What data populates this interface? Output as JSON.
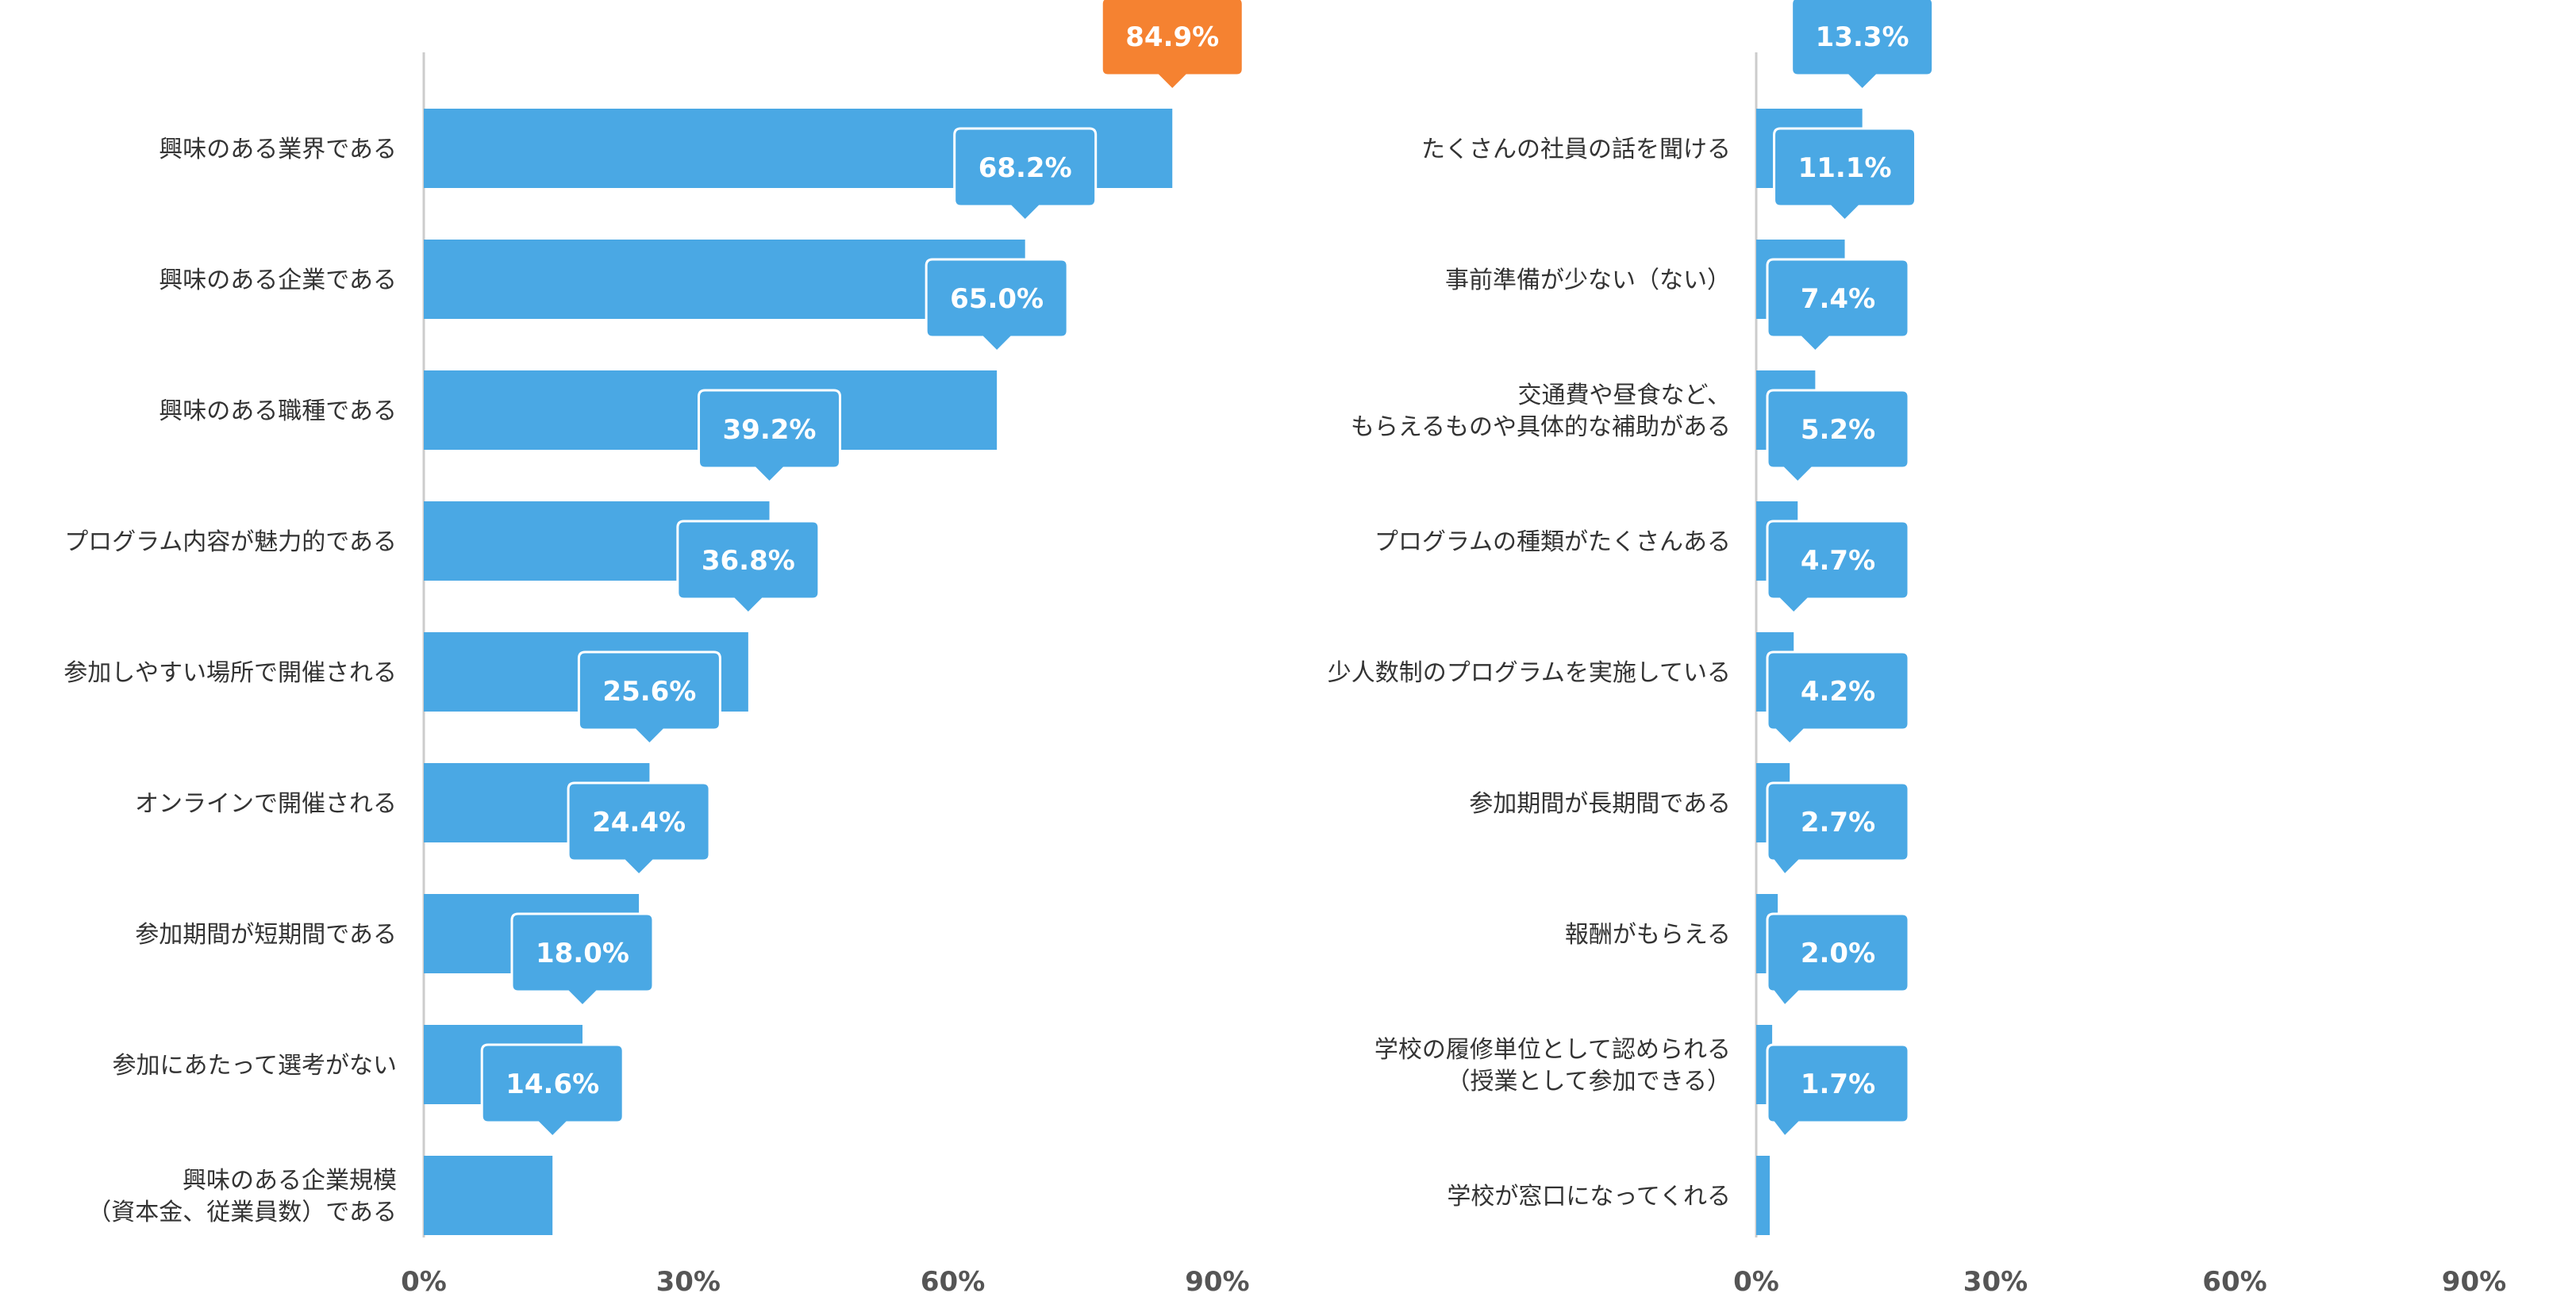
{
  "chart_data": [
    {
      "type": "bar",
      "orientation": "horizontal",
      "categories": [
        "興味のある業界である",
        "興味のある企業である",
        "興味のある職種である",
        "プログラム内容が魅力的である",
        "参加しやすい場所で開催される",
        "オンラインで開催される",
        "参加期間が短期間である",
        "参加にあたって選考がない",
        "興味のある企業規模\n（資本金、従業員数）である"
      ],
      "values": [
        84.9,
        68.2,
        65.0,
        39.2,
        36.8,
        25.6,
        24.4,
        18.0,
        14.6
      ],
      "value_labels": [
        "84.9%",
        "68.2%",
        "65.0%",
        "39.2%",
        "36.8%",
        "25.6%",
        "24.4%",
        "18.0%",
        "14.6%"
      ],
      "highlight_index": 0,
      "xlim": [
        0,
        90
      ],
      "xticks": [
        0,
        30,
        60,
        90
      ],
      "xtick_labels": [
        "0%",
        "30%",
        "60%",
        "90%"
      ],
      "grid": false,
      "colors": {
        "bar": "#4aa8e4",
        "highlight_label": "#f58231",
        "label_box": "#4aa8e4",
        "axis": "#cccccc",
        "text": "#333333"
      }
    },
    {
      "type": "bar",
      "orientation": "horizontal",
      "categories": [
        "たくさんの社員の話を聞ける",
        "事前準備が少ない（ない）",
        "交通費や昼食など、\nもらえるものや具体的な補助がある",
        "プログラムの種類がたくさんある",
        "少人数制のプログラムを実施している",
        "参加期間が長期間である",
        "報酬がもらえる",
        "学校の履修単位として認められる\n（授業として参加できる）",
        "学校が窓口になってくれる"
      ],
      "values": [
        13.3,
        11.1,
        7.4,
        5.2,
        4.7,
        4.2,
        2.7,
        2.0,
        1.7
      ],
      "value_labels": [
        "13.3%",
        "11.1%",
        "7.4%",
        "5.2%",
        "4.7%",
        "4.2%",
        "2.7%",
        "2.0%",
        "1.7%"
      ],
      "xlim": [
        0,
        90
      ],
      "xticks": [
        0,
        30,
        60,
        90
      ],
      "xtick_labels": [
        "0%",
        "30%",
        "60%",
        "90%"
      ],
      "grid": false,
      "colors": {
        "bar": "#4aa8e4",
        "label_box": "#4aa8e4",
        "axis": "#cccccc",
        "text": "#333333"
      }
    }
  ]
}
